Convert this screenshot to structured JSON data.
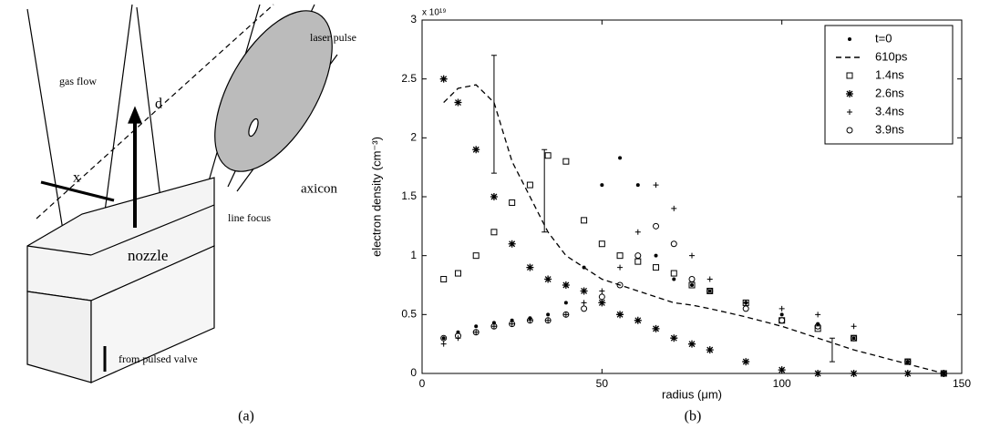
{
  "diagram": {
    "labels": {
      "gas_flow": "gas flow",
      "laser_pulse": "laser pulse",
      "d": "d",
      "x": "x",
      "axicon": "axicon",
      "line_focus": "line focus",
      "nozzle": "nozzle",
      "valve": "from pulsed valve"
    }
  },
  "captions": [
    "(a)",
    "(b)"
  ],
  "chart_data": {
    "type": "scatter",
    "xlabel": "radius (μm)",
    "ylabel": "electron density (cm⁻³)",
    "y_multiplier": "x 10¹⁹",
    "xlim": [
      0,
      150
    ],
    "xticks": [
      0,
      50,
      100,
      150
    ],
    "ylim": [
      0,
      3
    ],
    "yticks": [
      0,
      0.5,
      1,
      1.5,
      2,
      2.5,
      3
    ],
    "legend": "upper right",
    "x": [
      6,
      10,
      15,
      20,
      25,
      30,
      35,
      40,
      45,
      50,
      55,
      60,
      65,
      70,
      75,
      80,
      90,
      100,
      110,
      120,
      135,
      145
    ],
    "series": [
      {
        "name": "t=0",
        "marker": "dot",
        "color": "#000000",
        "values": [
          0.3,
          0.35,
          0.4,
          0.43,
          0.45,
          0.47,
          0.5,
          0.6,
          0.9,
          1.6,
          1.83,
          1.6,
          1.0,
          0.8,
          0.75,
          0.7,
          0.6,
          0.5,
          0.42,
          0.3,
          0.1,
          0
        ]
      },
      {
        "name": "610ps",
        "marker": "dash",
        "color": "#000000",
        "values": [
          2.3,
          2.42,
          2.45,
          2.3,
          1.8,
          1.5,
          1.2,
          1.0,
          0.9,
          0.8,
          0.75,
          0.7,
          0.65,
          0.6,
          0.58,
          0.55,
          0.48,
          0.4,
          0.3,
          0.2,
          0.08,
          0
        ]
      },
      {
        "name": "1.4ns",
        "marker": "square",
        "color": "#000000",
        "values": [
          0.8,
          0.85,
          1.0,
          1.2,
          1.45,
          1.6,
          1.85,
          1.8,
          1.3,
          1.1,
          1.0,
          0.95,
          0.9,
          0.85,
          0.75,
          0.7,
          0.6,
          0.45,
          0.38,
          0.3,
          0.1,
          0
        ]
      },
      {
        "name": "2.6ns",
        "marker": "star",
        "color": "#000000",
        "values": [
          2.5,
          2.3,
          1.9,
          1.5,
          1.1,
          0.9,
          0.8,
          0.75,
          0.7,
          0.6,
          0.5,
          0.45,
          0.38,
          0.3,
          0.25,
          0.2,
          0.1,
          0.03,
          0,
          0,
          0,
          0
        ]
      },
      {
        "name": "3.4ns",
        "marker": "plus",
        "color": "#000000",
        "values": [
          0.25,
          0.3,
          0.35,
          0.4,
          0.42,
          0.45,
          0.45,
          0.5,
          0.6,
          0.7,
          0.9,
          1.2,
          1.6,
          1.4,
          1.0,
          0.8,
          0.6,
          0.55,
          0.5,
          0.4,
          0.1,
          0
        ]
      },
      {
        "name": "3.9ns",
        "marker": "circle",
        "color": "#000000",
        "values": [
          0.3,
          0.32,
          0.35,
          0.4,
          0.42,
          0.45,
          0.45,
          0.5,
          0.55,
          0.65,
          0.75,
          1.0,
          1.25,
          1.1,
          0.8,
          0.7,
          0.55,
          0.45,
          0.4,
          0.3,
          0.1,
          0
        ]
      }
    ],
    "error_bars": [
      {
        "x": 20,
        "low": 1.7,
        "high": 2.7
      },
      {
        "x": 34,
        "low": 1.2,
        "high": 1.9
      },
      {
        "x": 114,
        "low": 0.1,
        "high": 0.3
      }
    ]
  }
}
